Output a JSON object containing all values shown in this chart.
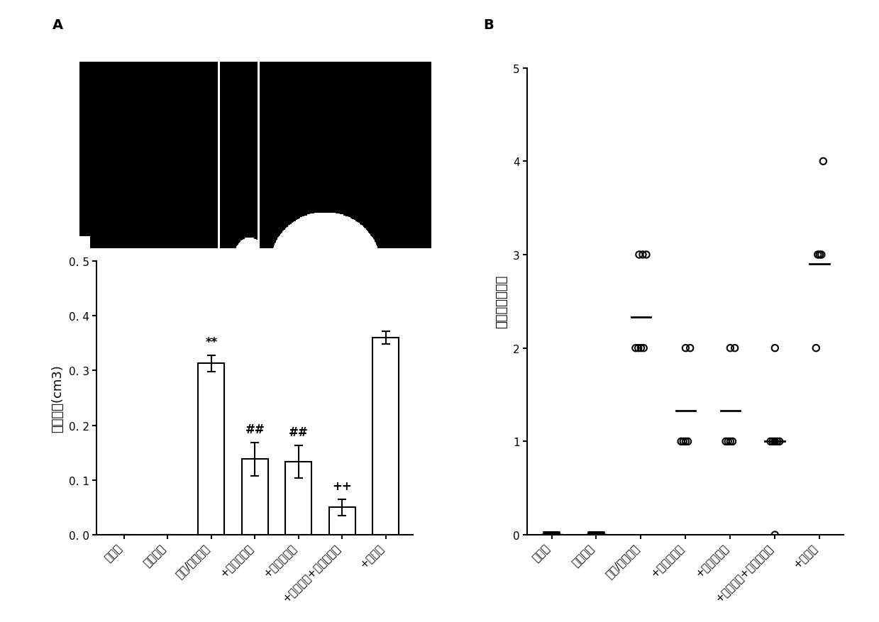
{
  "panel_A_label": "A",
  "panel_B_label": "B",
  "bar_categories": [
    "对照组",
    "假手术组",
    "缺血/再灸注组",
    "+普纳替尼组",
    "+恩利卡生组",
    "+普纳替尼+恩利卡生组",
    "+溶媒组"
  ],
  "bar_values": [
    0.0,
    0.0,
    0.313,
    0.138,
    0.133,
    0.05,
    0.36
  ],
  "bar_errors": [
    0.0,
    0.0,
    0.015,
    0.03,
    0.03,
    0.015,
    0.012
  ],
  "bar_annotations": [
    "",
    "",
    "**",
    "##",
    "##",
    "++",
    ""
  ],
  "bar_ylim": [
    0,
    0.5
  ],
  "bar_yticks": [
    0.0,
    0.1,
    0.2,
    0.3,
    0.4,
    0.5
  ],
  "bar_ytick_labels": [
    "0. 0",
    "0. 1",
    "0. 2",
    "0. 3",
    "0. 4",
    "0. 5"
  ],
  "bar_ylabel": "梗死体积(cm3)",
  "scatter_categories": [
    "对照组",
    "假手术组",
    "缺血/再灸注组",
    "+普纳替尼组",
    "+恩利卡生组",
    "+普纳替尼+恩利卡生组",
    "+溶媒组"
  ],
  "scatter_data": [
    [
      0,
      0,
      0,
      0,
      0,
      0,
      0
    ],
    [
      0,
      0,
      0,
      0,
      0,
      0,
      0
    ],
    [
      2,
      2,
      2,
      2,
      3,
      3,
      3
    ],
    [
      1,
      1,
      1,
      1,
      2,
      2
    ],
    [
      1,
      1,
      1,
      1,
      2,
      2
    ],
    [
      1,
      1,
      1,
      1,
      1,
      2
    ],
    [
      2,
      3,
      3,
      3,
      4
    ]
  ],
  "scatter_jitter": [
    [
      -0.12,
      -0.06,
      0.0,
      0.06,
      0.12,
      -0.08,
      0.08
    ],
    [
      -0.12,
      -0.06,
      0.0,
      0.06,
      0.12,
      -0.08,
      0.08
    ],
    [
      -0.12,
      -0.06,
      0.0,
      0.06,
      0.12,
      -0.04,
      0.04
    ],
    [
      -0.1,
      -0.05,
      0.0,
      0.05,
      0.1,
      0.0
    ],
    [
      -0.1,
      -0.05,
      0.0,
      0.05,
      0.1,
      0.0
    ],
    [
      -0.1,
      -0.05,
      0.0,
      0.05,
      0.1,
      0.0
    ],
    [
      -0.08,
      -0.04,
      0.0,
      0.04,
      0.08
    ]
  ],
  "scatter_medians": [
    0,
    0,
    2.33,
    1.33,
    1.33,
    1.0,
    2.9
  ],
  "scatter_ylim": [
    0,
    5
  ],
  "scatter_yticks": [
    0,
    1,
    2,
    3,
    4,
    5
  ],
  "scatter_ylabel": "神经生物学评分",
  "figure_bg": "#ffffff",
  "bar_color": "#ffffff",
  "bar_edgecolor": "#000000",
  "scatter_marker_color": "#000000",
  "annotation_fontsize": 12,
  "tick_label_fontsize": 11,
  "axis_label_fontsize": 13,
  "ylabel_fontsize": 13,
  "panel_label_fontsize": 14
}
